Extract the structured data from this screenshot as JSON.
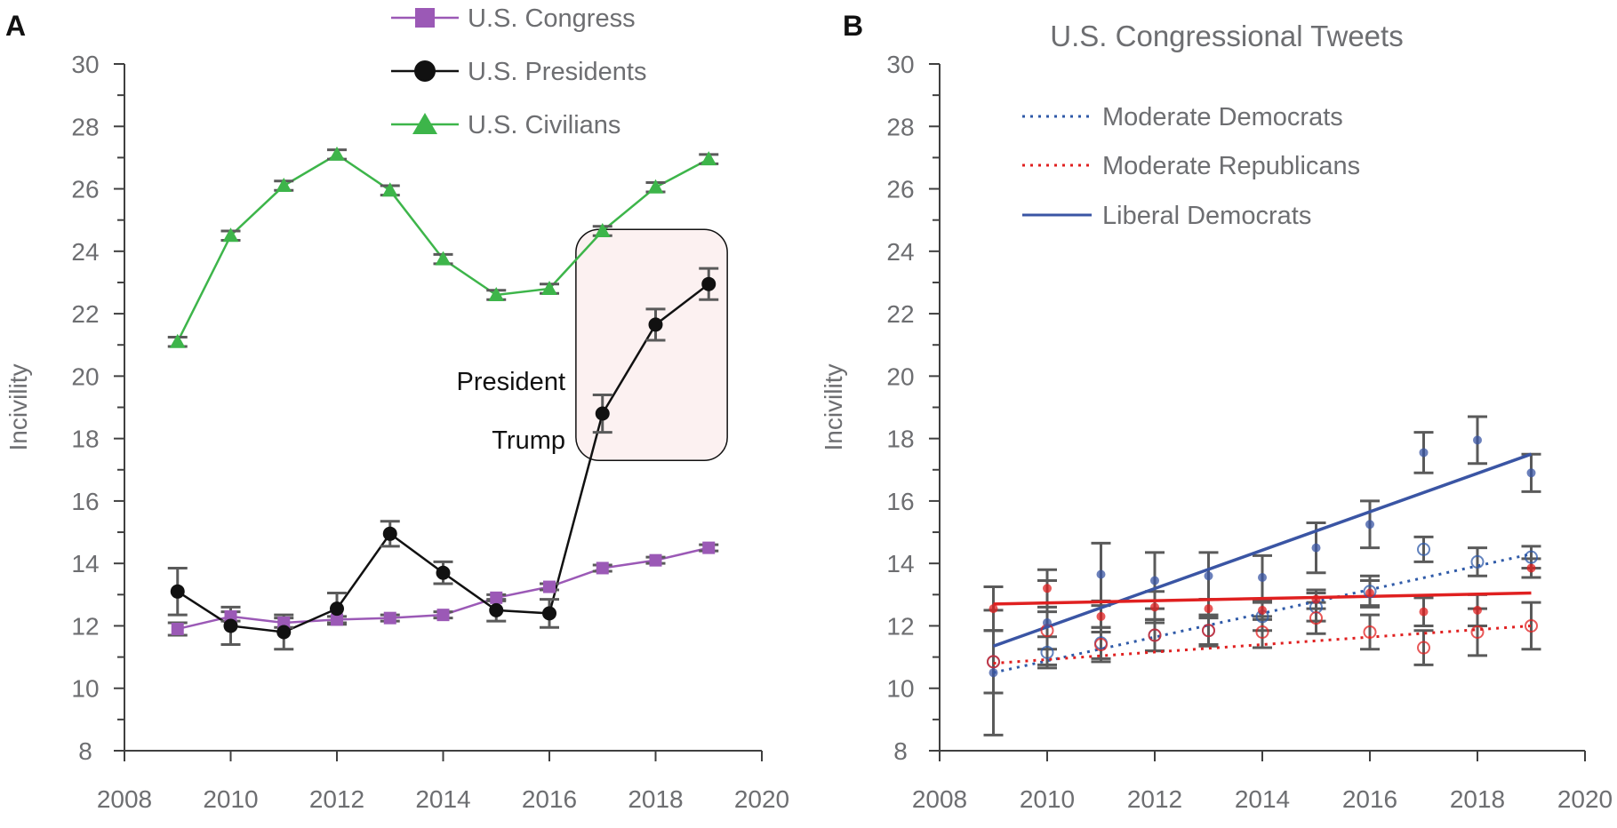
{
  "chart_data": [
    {
      "panel": "A",
      "type": "line",
      "ylabel": "Incivility",
      "xlim": [
        2008,
        2020
      ],
      "ylim": [
        8,
        30
      ],
      "xticks": [
        2008,
        2010,
        2012,
        2014,
        2016,
        2018,
        2020
      ],
      "yticks": [
        8,
        10,
        12,
        14,
        16,
        18,
        20,
        22,
        24,
        26,
        28,
        30
      ],
      "x": [
        2009,
        2010,
        2011,
        2012,
        2013,
        2014,
        2015,
        2016,
        2017,
        2018,
        2019
      ],
      "legend_position": "top",
      "series": [
        {
          "name": "U.S. Congress",
          "color": "#9b59b6",
          "marker": "square",
          "x": [
            2009,
            2010,
            2011,
            2012,
            2013,
            2014,
            2015,
            2016,
            2017,
            2018,
            2019
          ],
          "values": [
            11.9,
            12.3,
            12.1,
            12.2,
            12.25,
            12.35,
            12.9,
            13.25,
            13.85,
            14.1,
            14.5
          ],
          "errors": [
            0.2,
            0.15,
            0.15,
            0.1,
            0.1,
            0.1,
            0.1,
            0.1,
            0.1,
            0.1,
            0.1
          ]
        },
        {
          "name": "U.S. Presidents",
          "color": "#111111",
          "marker": "circle",
          "x": [
            2009,
            2010,
            2011,
            2012,
            2013,
            2014,
            2015,
            2016,
            2017,
            2018,
            2019
          ],
          "values": [
            13.1,
            12.0,
            11.8,
            12.55,
            14.95,
            13.7,
            12.5,
            12.4,
            18.8,
            21.65,
            22.95
          ],
          "errors": [
            0.75,
            0.6,
            0.55,
            0.5,
            0.4,
            0.35,
            0.35,
            0.45,
            0.6,
            0.5,
            0.5
          ]
        },
        {
          "name": "U.S. Civilians",
          "color": "#3db54a",
          "marker": "triangle",
          "x": [
            2009,
            2010,
            2011,
            2012,
            2013,
            2014,
            2015,
            2016,
            2017,
            2018,
            2019
          ],
          "values": [
            21.1,
            24.5,
            26.1,
            27.1,
            25.95,
            23.75,
            22.6,
            22.8,
            24.65,
            26.05,
            26.95
          ],
          "errors": [
            0.15,
            0.15,
            0.15,
            0.15,
            0.15,
            0.15,
            0.15,
            0.15,
            0.15,
            0.15,
            0.15
          ]
        }
      ],
      "annotation": {
        "line1": "President",
        "line2": "Trump",
        "x_range": [
          2016.5,
          2019.35
        ],
        "y_range": [
          17.3,
          24.7
        ]
      }
    },
    {
      "panel": "B",
      "type": "scatter",
      "title": "U.S. Congressional Tweets",
      "ylabel": "Incivility",
      "xlim": [
        2008,
        2020
      ],
      "ylim": [
        8,
        30
      ],
      "xticks": [
        2008,
        2010,
        2012,
        2014,
        2016,
        2018,
        2020
      ],
      "yticks": [
        8,
        10,
        12,
        14,
        16,
        18,
        20,
        22,
        24,
        26,
        28,
        30
      ],
      "legend_position": "top-left",
      "series": [
        {
          "name": "Moderate Democrats",
          "color": "#2f5aa8",
          "line": "dotted",
          "marker": "open-circle",
          "x": [
            2009,
            2010,
            2011,
            2012,
            2013,
            2014,
            2015,
            2016,
            2017,
            2018,
            2019
          ],
          "values": [
            10.85,
            11.15,
            11.45,
            11.7,
            11.85,
            12.3,
            12.6,
            13.1,
            14.45,
            14.05,
            14.2
          ],
          "errors": [
            1.0,
            0.5,
            0.5,
            0.5,
            0.45,
            0.45,
            0.45,
            0.5,
            0.4,
            0.45,
            0.35
          ],
          "trend": [
            10.5,
            14.3
          ]
        },
        {
          "name": "Moderate Republicans",
          "color": "#e02020",
          "line": "dotted",
          "marker": "open-circle",
          "x": [
            2009,
            2010,
            2011,
            2012,
            2013,
            2014,
            2015,
            2016,
            2017,
            2018,
            2019
          ],
          "values": [
            10.85,
            11.85,
            11.4,
            11.7,
            11.85,
            11.8,
            12.25,
            11.8,
            11.3,
            11.8,
            12.0
          ],
          "errors": [
            1.0,
            0.6,
            0.55,
            0.5,
            0.5,
            0.5,
            0.5,
            0.55,
            0.55,
            0.75,
            0.75
          ],
          "trend": [
            10.8,
            12.0
          ]
        },
        {
          "name": "Liberal Democrats",
          "color": "#3a55a4",
          "line": "solid",
          "marker": "dot",
          "x": [
            2009,
            2010,
            2011,
            2012,
            2013,
            2014,
            2015,
            2016,
            2017,
            2018,
            2019
          ],
          "values": [
            10.5,
            12.1,
            13.65,
            13.45,
            13.6,
            13.55,
            14.5,
            15.25,
            17.55,
            17.95,
            16.9
          ],
          "errors": [
            2.0,
            1.35,
            1.0,
            0.9,
            0.75,
            0.7,
            0.8,
            0.75,
            0.65,
            0.75,
            0.6
          ],
          "trend": [
            11.35,
            17.5
          ]
        },
        {
          "name": "",
          "color": "#e02020",
          "line": "solid",
          "marker": "dot",
          "x": [
            2009,
            2010,
            2011,
            2012,
            2013,
            2014,
            2015,
            2016,
            2017,
            2018,
            2019
          ],
          "values": [
            12.55,
            13.2,
            12.3,
            12.6,
            12.55,
            12.5,
            12.85,
            13.05,
            12.45,
            12.5,
            13.85
          ],
          "errors": [
            0.7,
            0.6,
            0.5,
            0.5,
            0.3,
            0.3,
            0.3,
            0.4,
            0.45,
            0.5,
            0.3
          ],
          "trend": [
            12.7,
            13.05
          ]
        }
      ]
    }
  ]
}
